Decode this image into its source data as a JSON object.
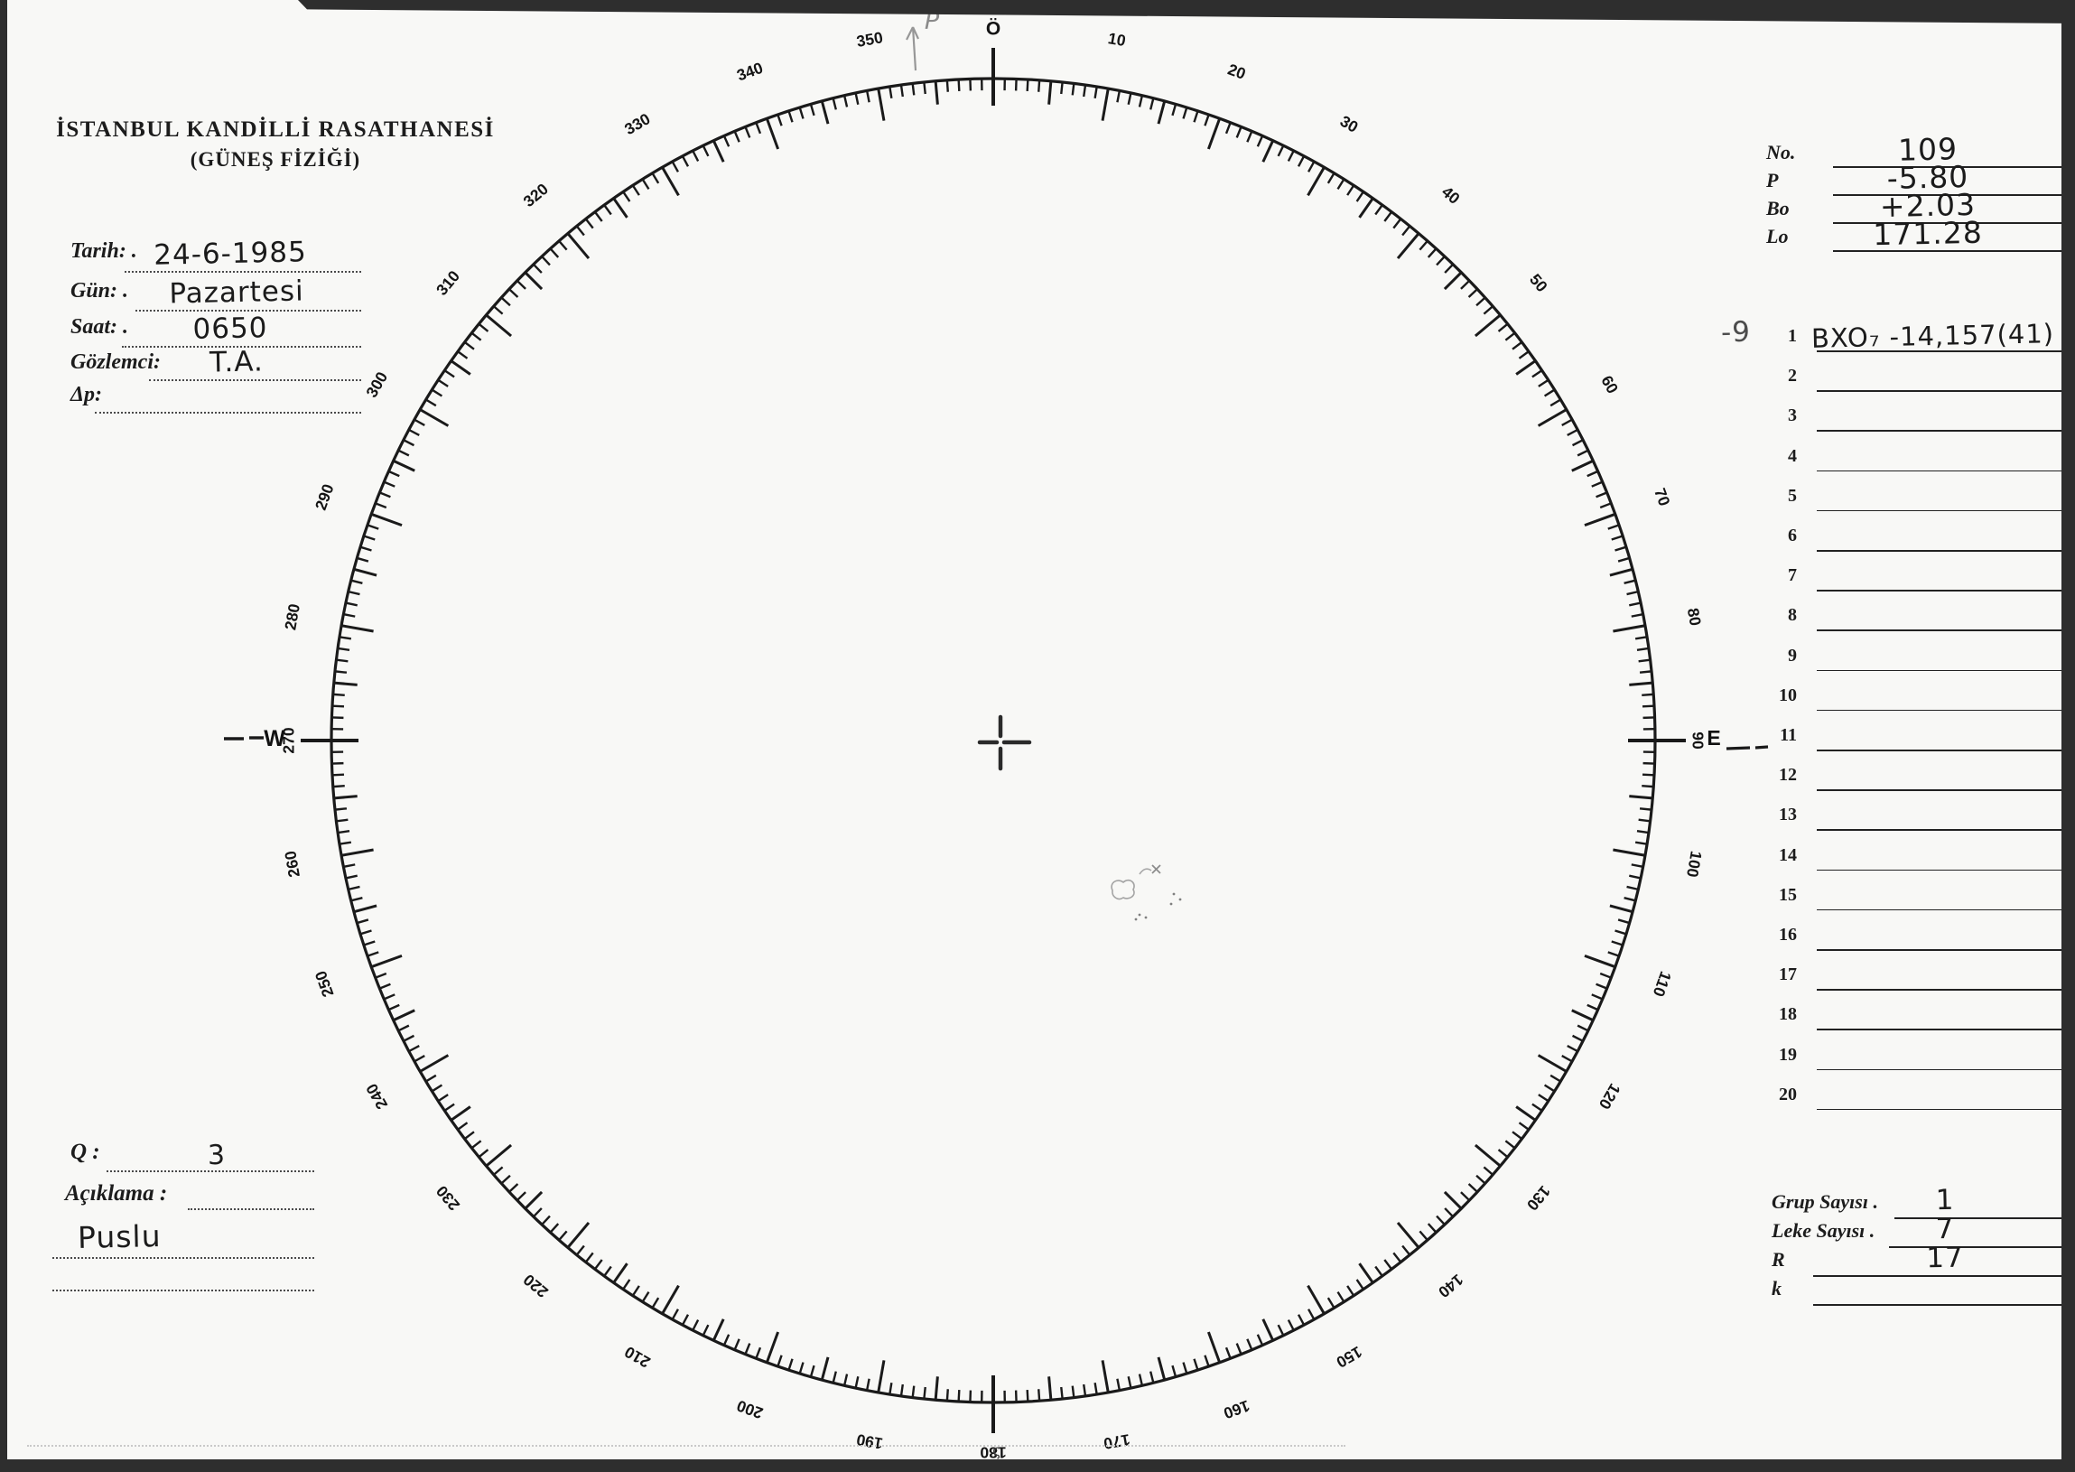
{
  "header": {
    "line1": "İSTANBUL KANDİLLİ RASATHANESİ",
    "line2": "(GÜNEŞ FİZİĞİ)"
  },
  "left_form": {
    "fields": [
      {
        "label": "Tarih: .",
        "value": "24-6-1985"
      },
      {
        "label": "Gün: .",
        "value": "Pazartesi"
      },
      {
        "label": "Saat: .",
        "value": "0650"
      },
      {
        "label": "Gözlemci:",
        "value": "T.A."
      },
      {
        "label": "Δp:",
        "value": ""
      }
    ]
  },
  "right_top": {
    "rows": [
      {
        "label": "No.",
        "value": "109"
      },
      {
        "label": "P",
        "value": "-5.80"
      },
      {
        "label": "Bo",
        "value": "+2.03"
      },
      {
        "label": "Lo",
        "value": "171.28"
      }
    ]
  },
  "measure_list": {
    "pencil_note": "-9",
    "rows": [
      {
        "num": "1",
        "value": "BXO₇ -14,157(41)"
      },
      {
        "num": "2",
        "value": ""
      },
      {
        "num": "3",
        "value": ""
      },
      {
        "num": "4",
        "value": ""
      },
      {
        "num": "5",
        "value": ""
      },
      {
        "num": "6",
        "value": ""
      },
      {
        "num": "7",
        "value": ""
      },
      {
        "num": "8",
        "value": ""
      },
      {
        "num": "9",
        "value": ""
      },
      {
        "num": "10",
        "value": ""
      },
      {
        "num": "11",
        "value": ""
      },
      {
        "num": "12",
        "value": ""
      },
      {
        "num": "13",
        "value": ""
      },
      {
        "num": "14",
        "value": ""
      },
      {
        "num": "15",
        "value": ""
      },
      {
        "num": "16",
        "value": ""
      },
      {
        "num": "17",
        "value": ""
      },
      {
        "num": "18",
        "value": ""
      },
      {
        "num": "19",
        "value": ""
      },
      {
        "num": "20",
        "value": ""
      }
    ]
  },
  "bottom_left": {
    "q_label": "Q :",
    "q_value": "3",
    "aciklama_label": "Açıklama :",
    "note": "Puslu"
  },
  "bottom_right": {
    "rows": [
      {
        "label": "Grup Sayısı .",
        "value": "1"
      },
      {
        "label": "Leke Sayısı .",
        "value": "7"
      },
      {
        "label": "R",
        "value": "17"
      },
      {
        "label": "k",
        "value": ""
      }
    ]
  },
  "dial": {
    "degree_labels": [
      "Ö",
      "10",
      "20",
      "30",
      "40",
      "50",
      "60",
      "70",
      "80",
      "90",
      "100",
      "110",
      "120",
      "130",
      "140",
      "150",
      "160",
      "170",
      "180",
      "190",
      "200",
      "210",
      "220",
      "230",
      "240",
      "250",
      "260",
      "270",
      "280",
      "290",
      "300",
      "310",
      "320",
      "330",
      "340",
      "350"
    ],
    "west_letter": "W",
    "east_letter": "E",
    "pencil_pointer_label": "P",
    "south_pencil_mark": "ς"
  },
  "colors": {
    "ink": "#1a1a1a",
    "pencil": "#979797",
    "scan_band": "#2e2e2e",
    "paper": "#f8f8f6"
  }
}
